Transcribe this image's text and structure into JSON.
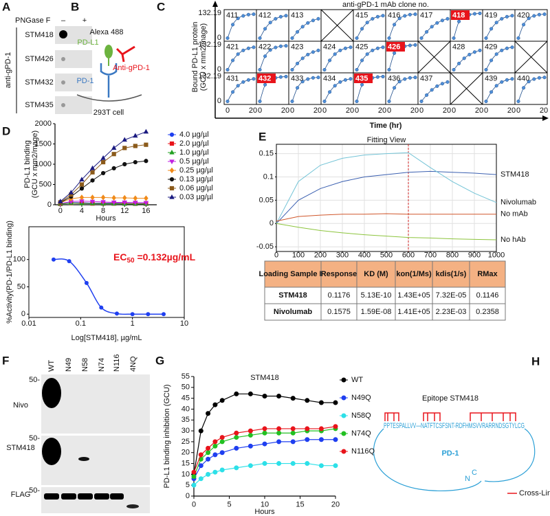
{
  "panel_letters": [
    "A",
    "B",
    "C",
    "D",
    "E",
    "F",
    "G",
    "H"
  ],
  "panel_a": {
    "treatment": "PNGase F",
    "lanes": [
      "–",
      "+"
    ],
    "group": "anti-gPD-1",
    "samples": [
      "STM418",
      "STM426",
      "STM432",
      "STM435"
    ]
  },
  "panel_b": {
    "fluor": "Alexa 488",
    "ligand": "PD-L1",
    "antibody": "Anti-gPD-1",
    "receptor": "PD-1",
    "cell": "293T cell"
  },
  "chart_data": [
    {
      "type": "small-multiples",
      "title": "anti-gPD-1 mAb clone no.",
      "x_label": "Time (hr)",
      "y_label": [
        "Bound PD-L1 protein",
        "(GCU x mm2/mage)"
      ],
      "x": [
        0,
        4,
        8,
        12,
        16,
        20
      ],
      "xlim": [
        0,
        20
      ],
      "xticks": [
        0,
        20
      ],
      "ylim": [
        0,
        132.19
      ],
      "yticks": [
        0,
        132.19
      ],
      "color": "#4f8fd8",
      "highlight_color": "#e8141b",
      "cells": [
        [
          {
            "label": "411",
            "values": [
              5,
              70,
              100,
              112,
              118,
              120
            ]
          },
          {
            "label": "412",
            "values": [
              5,
              50,
              80,
              98,
              108,
              113
            ]
          },
          {
            "label": "413",
            "values": [
              5,
              35,
              60,
              78,
              90,
              98
            ]
          },
          {
            "crossed": true
          },
          {
            "label": "415",
            "values": [
              5,
              50,
              80,
              98,
              108,
              113
            ]
          },
          {
            "label": "416",
            "values": [
              5,
              70,
              100,
              112,
              118,
              120
            ]
          },
          {
            "label": "417",
            "values": [
              5,
              35,
              60,
              78,
              90,
              98
            ]
          },
          {
            "label": "418",
            "highlight": true,
            "values": [
              5,
              85,
              110,
              118,
              122,
              124
            ]
          },
          {
            "label": "419",
            "values": [
              5,
              50,
              80,
              98,
              108,
              113
            ]
          },
          {
            "label": "420",
            "values": [
              5,
              70,
              100,
              112,
              118,
              120
            ]
          }
        ],
        [
          {
            "label": "421",
            "values": [
              5,
              50,
              80,
              98,
              108,
              113
            ]
          },
          {
            "label": "422",
            "values": [
              5,
              70,
              100,
              112,
              118,
              120
            ]
          },
          {
            "label": "423",
            "values": [
              5,
              35,
              60,
              78,
              90,
              98
            ]
          },
          {
            "label": "424",
            "values": [
              5,
              50,
              80,
              98,
              108,
              113
            ]
          },
          {
            "label": "425",
            "values": [
              5,
              50,
              80,
              98,
              108,
              113
            ]
          },
          {
            "label": "426",
            "highlight": true,
            "values": [
              5,
              85,
              110,
              118,
              122,
              124
            ]
          },
          {
            "crossed": true
          },
          {
            "label": "428",
            "values": [
              5,
              35,
              60,
              78,
              90,
              98
            ]
          },
          {
            "label": "429",
            "values": [
              5,
              50,
              80,
              98,
              108,
              113
            ]
          },
          {
            "crossed": true
          }
        ],
        [
          {
            "label": "431",
            "values": [
              5,
              50,
              80,
              98,
              108,
              113
            ]
          },
          {
            "label": "432",
            "highlight": true,
            "values": [
              5,
              85,
              110,
              118,
              122,
              124
            ]
          },
          {
            "label": "433",
            "values": [
              5,
              70,
              100,
              112,
              118,
              120
            ]
          },
          {
            "label": "434",
            "values": [
              5,
              50,
              80,
              98,
              108,
              113
            ]
          },
          {
            "label": "435",
            "highlight": true,
            "values": [
              5,
              85,
              110,
              118,
              122,
              124
            ]
          },
          {
            "label": "436",
            "values": [
              5,
              70,
              100,
              112,
              118,
              120
            ]
          },
          {
            "label": "437",
            "values": [
              5,
              35,
              60,
              78,
              90,
              98
            ]
          },
          {
            "crossed": true
          },
          {
            "label": "439",
            "values": [
              5,
              50,
              80,
              98,
              108,
              113
            ]
          },
          {
            "label": "440",
            "values": [
              5,
              70,
              100,
              112,
              118,
              120
            ]
          }
        ]
      ]
    },
    {
      "type": "line",
      "x_label": "Hours",
      "y_label": [
        "PD-L1 binding",
        "(GCU x mm2/mage)"
      ],
      "x": [
        0,
        2,
        4,
        6,
        8,
        10,
        12,
        14,
        16
      ],
      "xlim": [
        -1,
        18
      ],
      "xticks": [
        0,
        4,
        8,
        12,
        16
      ],
      "ylim": [
        0,
        2000
      ],
      "yticks": [
        0,
        500,
        1000,
        1500,
        2000
      ],
      "legend": "right",
      "series": [
        {
          "name": "4.0 µg/µl",
          "color": "#1f3ff0",
          "marker": "circle",
          "values": [
            20,
            50,
            50,
            40,
            40,
            40,
            35,
            30,
            30
          ]
        },
        {
          "name": "2.0 µg/µl",
          "color": "#e8141b",
          "marker": "square",
          "values": [
            20,
            40,
            40,
            30,
            30,
            30,
            30,
            25,
            25
          ]
        },
        {
          "name": "1.0 µg/µl",
          "color": "#22a022",
          "marker": "triangle",
          "values": [
            20,
            40,
            30,
            30,
            25,
            25,
            20,
            20,
            20
          ]
        },
        {
          "name": "0.5 µg/µl",
          "color": "#c020e0",
          "marker": "triangle-down",
          "values": [
            30,
            80,
            90,
            80,
            70,
            60,
            60,
            55,
            50
          ]
        },
        {
          "name": "0.25 µg/µl",
          "color": "#f08a1a",
          "marker": "diamond",
          "values": [
            50,
            150,
            180,
            180,
            180,
            170,
            170,
            160,
            160
          ]
        },
        {
          "name": "0.13 µg/µl",
          "color": "#111111",
          "marker": "circle",
          "values": [
            50,
            200,
            400,
            600,
            780,
            900,
            1000,
            1050,
            1080
          ]
        },
        {
          "name": "0.06 µg/µl",
          "color": "#8b5a1a",
          "marker": "square",
          "values": [
            60,
            250,
            500,
            800,
            1050,
            1250,
            1400,
            1450,
            1480
          ]
        },
        {
          "name": "0.03 µg/µl",
          "color": "#1a1a80",
          "marker": "triangle",
          "values": [
            80,
            300,
            620,
            900,
            1150,
            1400,
            1600,
            1700,
            1800
          ]
        }
      ]
    },
    {
      "type": "dose-response",
      "x_label": "Log[STM418], µg/mL",
      "y_label": "%Activity(PD-1/PD-L1 binding)",
      "xlog": true,
      "x": [
        0.03,
        0.06,
        0.13,
        0.25,
        0.5,
        1,
        2,
        4
      ],
      "values": [
        100,
        97,
        57,
        12,
        1,
        0,
        0,
        0
      ],
      "xlim": [
        0.01,
        10
      ],
      "xticks": [
        0.01,
        0.1,
        1,
        10
      ],
      "ylim": [
        -6,
        160
      ],
      "yticks": [
        0,
        50,
        100
      ],
      "color": "#1f3ff0",
      "annotation": [
        "EC",
        "50",
        " =0.132µg/mL"
      ],
      "annotation_color": "#e8141b"
    },
    {
      "type": "line",
      "title": "Fitting View",
      "x": [
        0,
        100,
        200,
        300,
        400,
        500,
        600,
        700,
        800,
        900,
        1000
      ],
      "xlim": [
        0,
        1000
      ],
      "xticks": [
        0,
        100,
        200,
        300,
        400,
        500,
        600,
        700,
        800,
        900,
        1000
      ],
      "ylim": [
        -0.06,
        0.17
      ],
      "yticks": [
        -0.05,
        0,
        0.05,
        0.1,
        0.15
      ],
      "grid": true,
      "vline": 600,
      "legend": "line-end",
      "series": [
        {
          "name": "STM418",
          "color": "#3a5fb0",
          "values": [
            0,
            0.05,
            0.075,
            0.09,
            0.1,
            0.105,
            0.11,
            0.112,
            0.11,
            0.108,
            0.105
          ]
        },
        {
          "name": "Nivolumab",
          "color": "#72c3d6",
          "values": [
            0,
            0.09,
            0.125,
            0.14,
            0.147,
            0.15,
            0.152,
            0.12,
            0.09,
            0.065,
            0.045
          ]
        },
        {
          "name": "No mAb",
          "color": "#d0562a",
          "values": [
            0.005,
            0.015,
            0.018,
            0.02,
            0.02,
            0.021,
            0.02,
            0.02,
            0.02,
            0.02,
            0.02
          ]
        },
        {
          "name": "No hAb",
          "color": "#8cc43c",
          "values": [
            0,
            -0.008,
            -0.015,
            -0.02,
            -0.024,
            -0.027,
            -0.03,
            -0.031,
            -0.033,
            -0.034,
            -0.035
          ]
        }
      ]
    },
    {
      "type": "line",
      "title": "STM418",
      "x_label": "Hours",
      "y_label": "PD-L1 binding inhibition (GCU)",
      "x": [
        0,
        1,
        2,
        3,
        4,
        6,
        8,
        10,
        12,
        14,
        16,
        18,
        20
      ],
      "xlim": [
        0,
        20
      ],
      "xticks": [
        0,
        5,
        10,
        15,
        20
      ],
      "ylim": [
        0,
        55
      ],
      "yticks": [
        0,
        5,
        10,
        15,
        20,
        25,
        30,
        35,
        40,
        45,
        50,
        55
      ],
      "legend": "right",
      "series": [
        {
          "name": "WT",
          "color": "#000000",
          "marker": "circle",
          "values": [
            10,
            30,
            38,
            42,
            44,
            47,
            47,
            46,
            46,
            45,
            44,
            43,
            43
          ]
        },
        {
          "name": "N49Q",
          "color": "#1f3ff0",
          "marker": "circle",
          "values": [
            8,
            14,
            17,
            19,
            20,
            22,
            23,
            24,
            25,
            25,
            26,
            26,
            26
          ]
        },
        {
          "name": "N58Q",
          "color": "#2de0e8",
          "marker": "circle",
          "values": [
            5,
            8,
            10,
            11,
            12,
            13,
            14,
            15,
            15,
            15,
            15,
            14,
            14
          ]
        },
        {
          "name": "N74Q",
          "color": "#22c022",
          "marker": "circle",
          "values": [
            9,
            17,
            20,
            23,
            25,
            27,
            28,
            29,
            29,
            29,
            30,
            30,
            31
          ]
        },
        {
          "name": "N116Q",
          "color": "#e8141b",
          "marker": "circle",
          "values": [
            11,
            19,
            22,
            25,
            27,
            29,
            30,
            31,
            31,
            31,
            31,
            31,
            32
          ]
        }
      ]
    }
  ],
  "panel_e_table": {
    "header": [
      "Loading Sample ID",
      "Response",
      "KD (M)",
      "kon(1/Ms)",
      "kdis(1/s)",
      "RMax"
    ],
    "rows": [
      [
        "STM418",
        "0.1176",
        "5.13E-10",
        "1.43E+05",
        "7.32E-05",
        "0.1146"
      ],
      [
        "Nivolumab",
        "0.1575",
        "1.59E-08",
        "1.41E+05",
        "2.23E-03",
        "0.2358"
      ]
    ]
  },
  "panel_f": {
    "lanes": [
      "WT",
      "N49",
      "N58",
      "N74",
      "N116",
      "4NQ"
    ],
    "blots": [
      "Nivo",
      "STM418",
      "FLAG"
    ],
    "marker": "50-"
  },
  "panel_h": {
    "title": "Epitope STM418",
    "sequence": "PPTESPALLVV—NATFTCSFSNT-RDFHMSVVRARRNDSGTYLCG",
    "protein": "PD-1",
    "n_term": "N",
    "c_term": "C",
    "legend": "Cross-Link"
  }
}
